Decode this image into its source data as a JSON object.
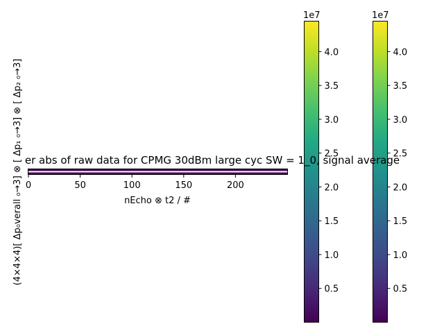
{
  "chart_data": {
    "type": "heatmap",
    "title": "er abs of raw data for CPMG 30dBm large cyc SW = 1_0, signal average",
    "xlabel": "nEcho ⊗ t2 / #",
    "ylabel": "(4×4×4)[ Δp₀verall ₀→3] ⊗ [ Δp₁ ₀→3] ⊗ [ Δp₂ ₀→3]",
    "xlim": [
      0,
      250
    ],
    "x_ticks": [
      "0",
      "50",
      "100",
      "150",
      "200"
    ],
    "x_tick_values": [
      0,
      50,
      100,
      150,
      200
    ],
    "colormap": "viridis",
    "grid": false,
    "colorbars": [
      {
        "scale_label": "1e7",
        "range": [
          0,
          44500000
        ],
        "ticks": [
          "0.5",
          "1.0",
          "1.5",
          "2.0",
          "2.5",
          "3.0",
          "3.5",
          "4.0"
        ],
        "tick_values": [
          0.5,
          1.0,
          1.5,
          2.0,
          2.5,
          3.0,
          3.5,
          4.0
        ]
      },
      {
        "scale_label": "1e7",
        "range": [
          0,
          44500000
        ],
        "ticks": [
          "0.5",
          "1.0",
          "1.5",
          "2.0",
          "2.5",
          "3.0",
          "3.5",
          "4.0"
        ],
        "tick_values": [
          0.5,
          1.0,
          1.5,
          2.0,
          2.5,
          3.0,
          3.5,
          4.0
        ]
      }
    ]
  }
}
